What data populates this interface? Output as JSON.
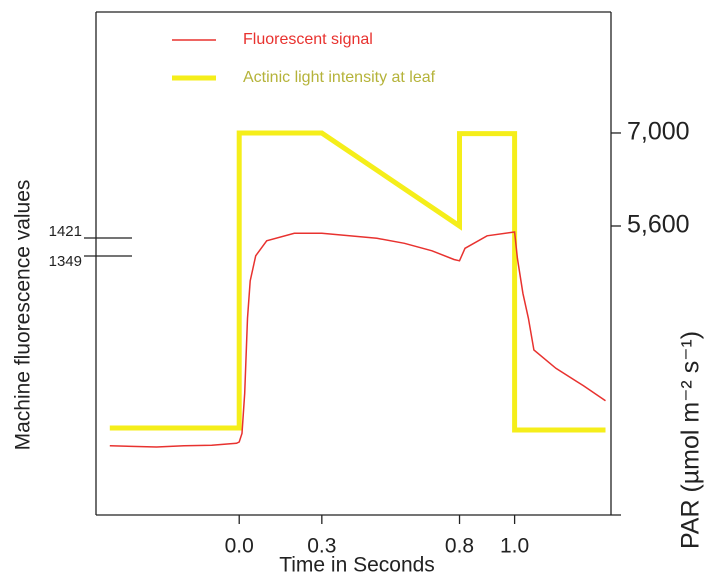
{
  "chart_data": {
    "type": "line",
    "xlabel": "Time in Seconds",
    "ylabel": "Machine fluorescence values",
    "y2label": "PAR (µmol m⁻² s⁻¹)",
    "xlim": [
      -0.52,
      1.35
    ],
    "xticks": [
      {
        "value": 0,
        "label": "0.0"
      },
      0.3,
      0.8,
      {
        "value": 1,
        "label": "1.0"
      }
    ],
    "ylim": [
      313,
      2325
    ],
    "yticks": [
      1349,
      1421
    ],
    "y2lim": [
      1250,
      8821
    ],
    "y2ticks": [
      {
        "value": 5600,
        "label": "5,600"
      },
      {
        "value": 7000,
        "label": "7,000"
      }
    ],
    "series": [
      {
        "name": "Fluorescent signal",
        "color": "#e8322f",
        "width": 1.5,
        "x": [
          -0.47,
          -0.3,
          -0.2,
          -0.1,
          -0.01,
          0.0,
          0.01,
          0.02,
          0.03,
          0.04,
          0.06,
          0.1,
          0.2,
          0.3,
          0.4,
          0.5,
          0.6,
          0.7,
          0.78,
          0.8,
          0.82,
          0.9,
          1.0,
          1.01,
          1.03,
          1.05,
          1.07,
          1.15,
          1.25,
          1.33
        ],
        "values": [
          590,
          585,
          590,
          592,
          600,
          605,
          640,
          800,
          1100,
          1250,
          1350,
          1410,
          1440,
          1440,
          1430,
          1420,
          1400,
          1370,
          1335,
          1330,
          1380,
          1430,
          1445,
          1340,
          1200,
          1100,
          973,
          900,
          830,
          770
        ]
      },
      {
        "name": "Actinic light intensity at leaf",
        "color": "#f5ee1a",
        "text_color": "#b5b33a",
        "width": 5,
        "axis": "y2",
        "x": [
          -0.47,
          0.0,
          0.0,
          0.3,
          0.8,
          0.8,
          1.0,
          1.0,
          1.33
        ],
        "values": [
          2560,
          2560,
          7000,
          7000,
          5600,
          6990,
          6990,
          2530,
          2530
        ]
      }
    ]
  }
}
